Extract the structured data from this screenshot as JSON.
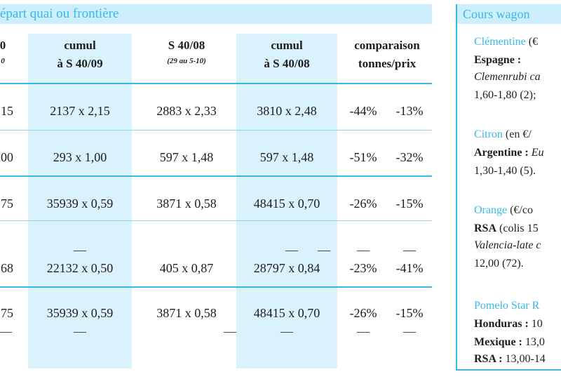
{
  "table": {
    "title": "épart quai ou frontière",
    "headers": [
      {
        "line1": "0",
        "line2": "0"
      },
      {
        "line1": "cumul",
        "line2": "à S 40/09"
      },
      {
        "line1": "S 40/08",
        "line2": "(29 au 5-10)"
      },
      {
        "line1": "cumul",
        "line2": "à S 40/08"
      },
      {
        "line1": "comparaison",
        "line2": "tonnes/prix"
      }
    ],
    "rows": [
      {
        "c0": "15",
        "c1": "2137 x 2,15",
        "c2": "2883 x 2,33",
        "c3": "3810 x 2,48",
        "c4": "-44%",
        "c5": "-13%"
      },
      {
        "c0": "00",
        "c1": "293 x 1,00",
        "c2": "597 x 1,48",
        "c3": "597 x 1,48",
        "c4": "-51%",
        "c5": "-32%"
      },
      {
        "c0": "75",
        "c1": "35939 x 0,59",
        "c2": "3871 x 0,58",
        "c3": "48415 x 0,70",
        "c4": "-26%",
        "c5": "-15%"
      },
      {
        "dash": "—",
        "c0": "68",
        "c1": "22132 x 0,50",
        "c2": "405 x 0,87",
        "c3": "28797 x 0,84",
        "c4": "-23%",
        "c5": "-41%"
      },
      {
        "c0": "75",
        "c1": "35939 x 0,59",
        "c2": "3871 x 0,58",
        "c3": "48415 x  0,70",
        "c4": "-26%",
        "c5": "-15%",
        "dash": "—"
      }
    ]
  },
  "side": {
    "title": "Cours wagon",
    "entries": [
      {
        "name": "Clémentine",
        "unit": " (€",
        "origin": "Espagne :",
        "variety": "Clemenrubi ca",
        "price": "1,60-1,80 (2);"
      },
      {
        "name": "Citron",
        "unit": " (en €/",
        "origin": "Argentine : ",
        "variety": "Eu",
        "price": "1,30-1,40 (5)."
      },
      {
        "name": "Orange",
        "unit": " (€/co",
        "origin": "RSA",
        "origin_extra": " (colis 15",
        "variety": "Valencia-late c",
        "price": "12,00 (72)."
      },
      {
        "name": "Pomelo Star R",
        "lines": [
          {
            "origin": "Honduras : ",
            "value": "10"
          },
          {
            "origin": "Mexique : ",
            "value": "13,0"
          },
          {
            "origin": "RSA : ",
            "value": "13,00-14"
          }
        ]
      }
    ]
  }
}
